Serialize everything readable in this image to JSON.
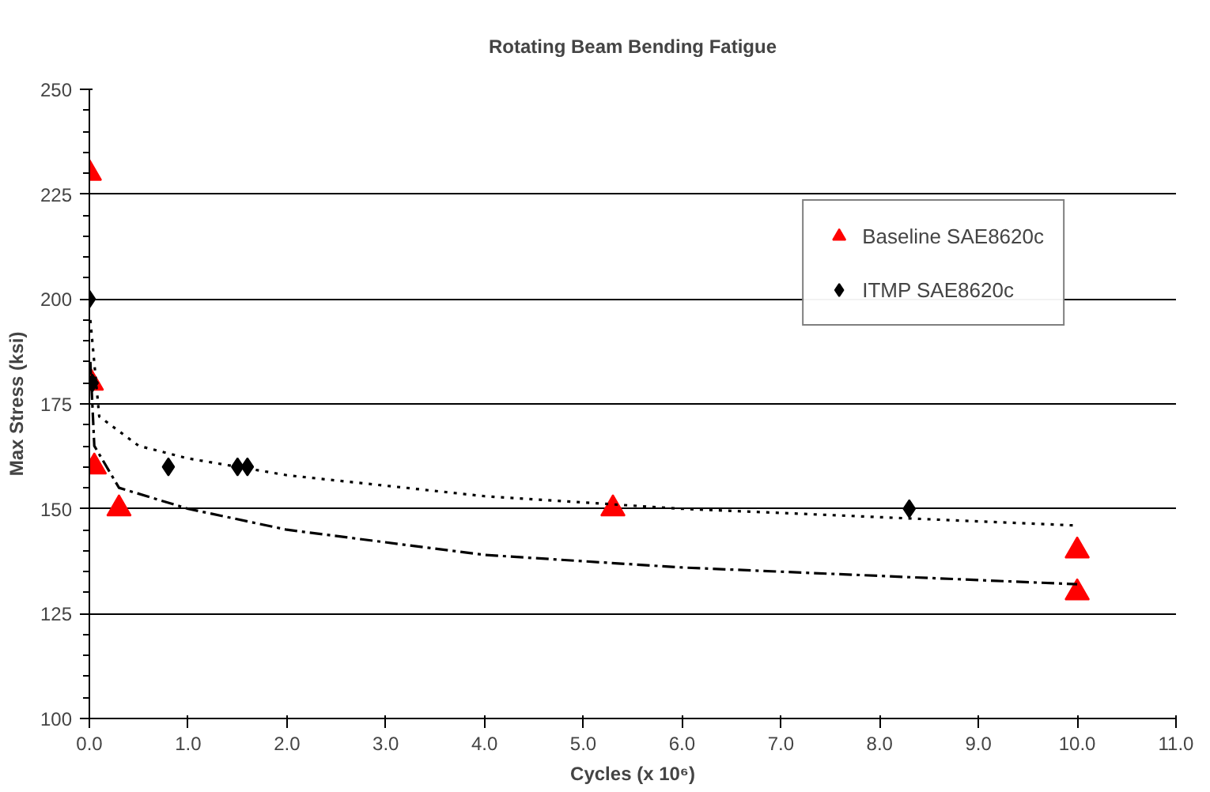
{
  "chart_data": {
    "type": "scatter",
    "title": "Rotating Beam Bending Fatigue",
    "xlabel": "Cycles (x 10⁶)",
    "ylabel": "Max Stress (ksi)",
    "xlim": [
      0,
      11
    ],
    "ylim": [
      100,
      250
    ],
    "xticks": [
      {
        "value": 0,
        "label": "0.0"
      },
      {
        "value": 1,
        "label": "1.0"
      },
      {
        "value": 2,
        "label": "2.0"
      },
      {
        "value": 3,
        "label": "3.0"
      },
      {
        "value": 4,
        "label": "4.0"
      },
      {
        "value": 5,
        "label": "5.0"
      },
      {
        "value": 6,
        "label": "6.0"
      },
      {
        "value": 7,
        "label": "7.0"
      },
      {
        "value": 8,
        "label": "8.0"
      },
      {
        "value": 9,
        "label": "9.0"
      },
      {
        "value": 10,
        "label": "10.0"
      },
      {
        "value": 11,
        "label": "11.0"
      }
    ],
    "yticks": [
      100,
      125,
      150,
      175,
      200,
      225,
      250
    ],
    "grid": "y",
    "legend": "top right",
    "series": [
      {
        "name": "Baseline SAE8620c",
        "color": "#ff0000",
        "marker": "triangle",
        "x": [
          0,
          0.02,
          0.05,
          0.3,
          5.3,
          10,
          10
        ],
        "values": [
          230,
          180,
          160,
          150,
          150,
          140,
          130
        ]
      },
      {
        "name": "ITMP SAE8620c",
        "color": "#000000",
        "marker": "diamond",
        "x": [
          0,
          0.03,
          0.8,
          1.5,
          1.6,
          8.3
        ],
        "values": [
          200,
          180,
          160,
          160,
          160,
          150
        ]
      },
      {
        "type": "line",
        "color": "#000000",
        "line_style": "dotted",
        "x": [
          0.01,
          0.1,
          0.5,
          1,
          2,
          4,
          6,
          8,
          10
        ],
        "values": [
          195,
          172,
          165,
          162,
          158,
          153,
          150,
          148,
          146
        ]
      },
      {
        "type": "line",
        "color": "#000000",
        "line_style": "dashdot",
        "x": [
          0.01,
          0.05,
          0.3,
          1,
          2,
          4,
          6,
          8,
          10
        ],
        "values": [
          185,
          165,
          155,
          150,
          145,
          139,
          136,
          134,
          132
        ]
      }
    ]
  }
}
